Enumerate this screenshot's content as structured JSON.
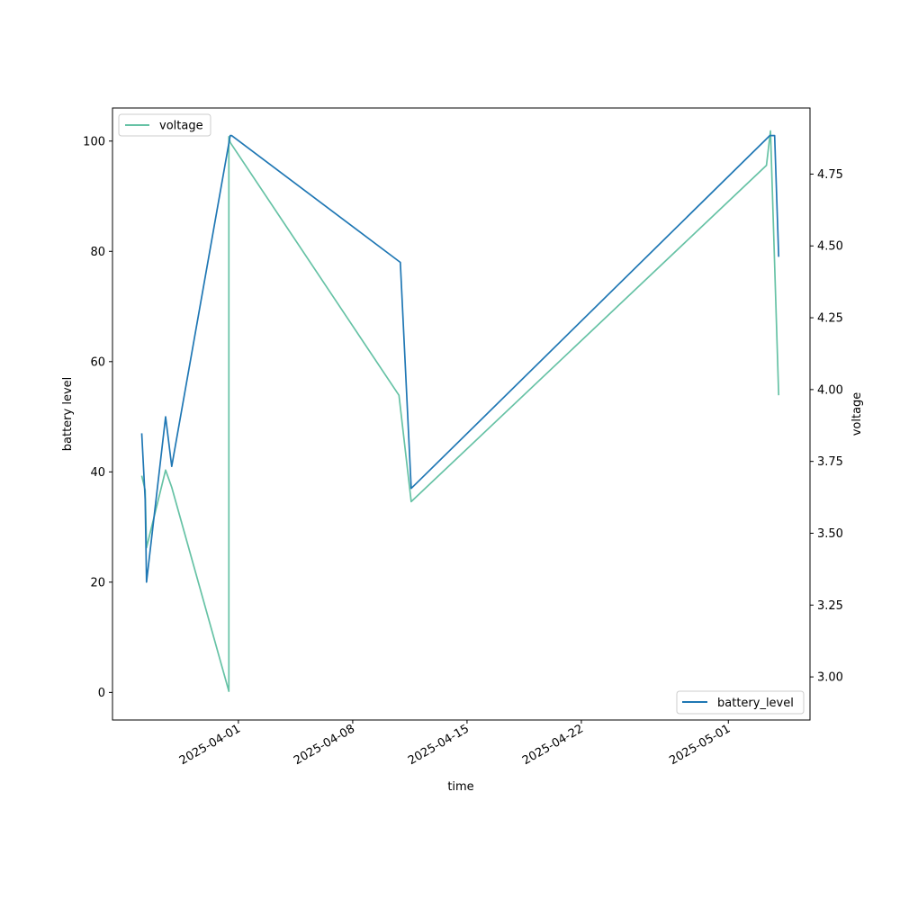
{
  "chart_data": {
    "type": "line",
    "xlabel": "time",
    "ylabel": "battery level",
    "y2label": "voltage",
    "xlim": [
      "2025-03-24 07:00",
      "2025-05-06 00:00"
    ],
    "ylim": [
      -5,
      106
    ],
    "y2lim": [
      2.85,
      4.98
    ],
    "x_ticks": [
      "2025-04-01",
      "2025-04-08",
      "2025-04-15",
      "2025-04-22",
      "2025-05-01"
    ],
    "y_ticks": [
      0,
      20,
      40,
      60,
      80,
      100
    ],
    "y2_ticks": [
      3.0,
      3.25,
      3.5,
      3.75,
      4.0,
      4.25,
      4.5,
      4.75
    ],
    "y2_tick_labels": [
      "3.00",
      "3.25",
      "3.50",
      "3.75",
      "4.00",
      "4.25",
      "4.50",
      "4.75"
    ],
    "legend_voltage_position": "upper-left",
    "legend_battery_position": "lower-right",
    "series": [
      {
        "name": "battery_level",
        "axis": "left",
        "color": "#1f77b4",
        "x": [
          "2025-03-26 02:00",
          "2025-03-26 07:00",
          "2025-03-26 09:00",
          "2025-03-27 13:00",
          "2025-03-27 22:00",
          "2025-03-31 12:00",
          "2025-03-31 14:00",
          "2025-04-10 22:00",
          "2025-04-11 14:00",
          "2025-05-03 13:00",
          "2025-05-03 20:00",
          "2025-05-04 02:00"
        ],
        "values": [
          47,
          35,
          20,
          50,
          41,
          101,
          101,
          78,
          37,
          101,
          101,
          79
        ]
      },
      {
        "name": "voltage",
        "axis": "right",
        "color": "#66c2a5",
        "x": [
          "2025-03-26 02:00",
          "2025-03-26 07:00",
          "2025-03-26 09:00",
          "2025-03-27 13:00",
          "2025-03-27 22:00",
          "2025-03-31 10:00",
          "2025-03-31 10:01",
          "2025-03-31 12:00",
          "2025-04-10 20:00",
          "2025-04-11 14:00",
          "2025-05-03 08:00",
          "2025-05-03 14:00",
          "2025-05-04 02:00"
        ],
        "values": [
          3.7,
          3.65,
          3.45,
          3.72,
          3.66,
          2.95,
          4.88,
          4.86,
          3.98,
          3.61,
          4.78,
          4.9,
          3.98
        ]
      }
    ]
  }
}
